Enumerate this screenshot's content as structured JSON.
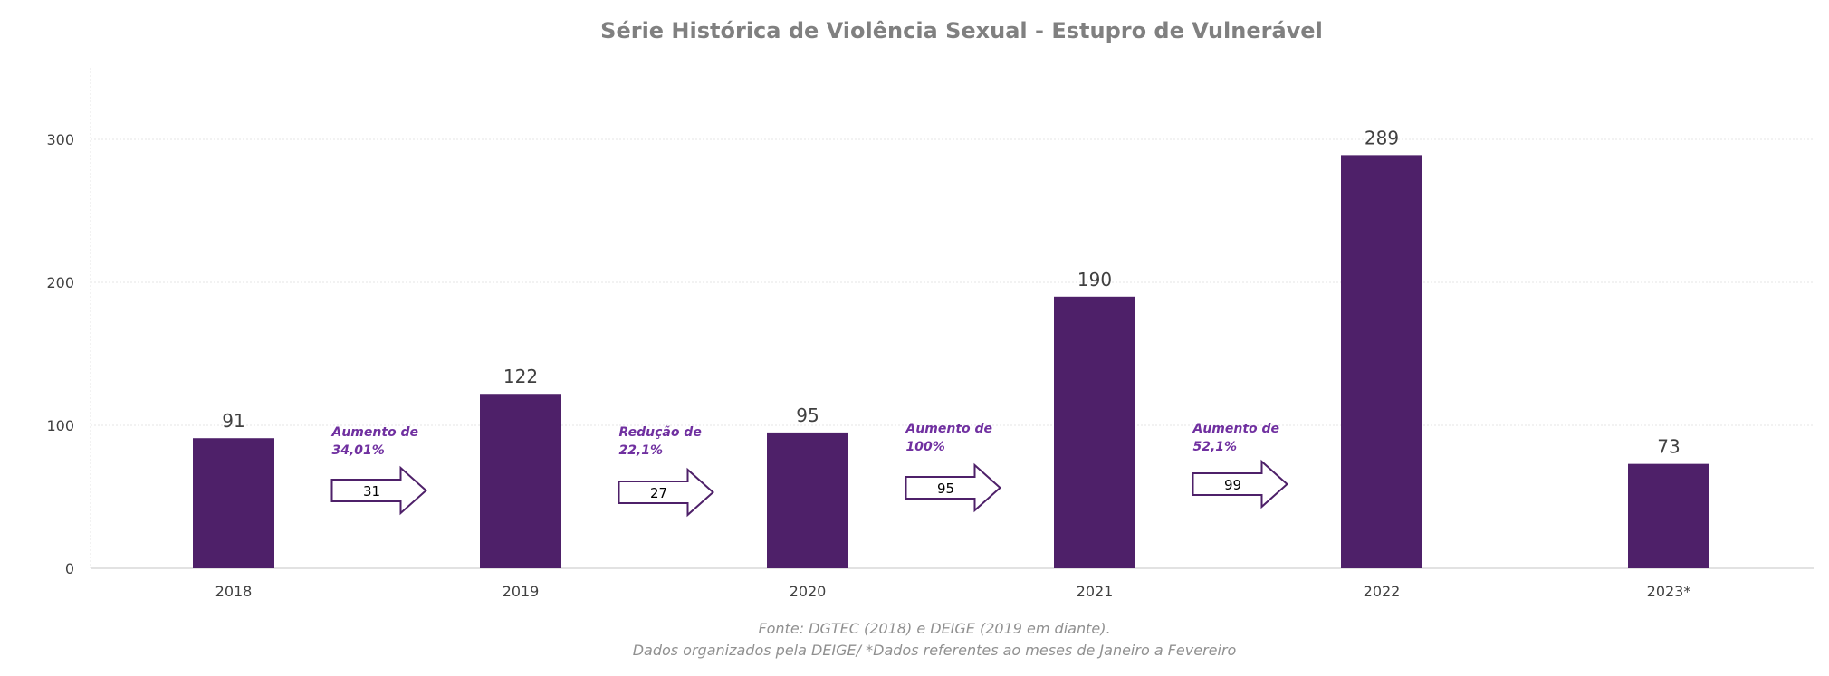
{
  "chart_data": {
    "type": "bar",
    "title": "Série Histórica de Violência Sexual - Estupro de Vulnerável",
    "categories": [
      "2018",
      "2019",
      "2020",
      "2021",
      "2022",
      "2023*"
    ],
    "values": [
      91,
      122,
      95,
      190,
      289,
      73
    ],
    "ylim": [
      0,
      350
    ],
    "yticks": [
      0,
      100,
      200,
      300
    ],
    "xlabel": "",
    "ylabel": "",
    "grid": true,
    "annotations": [
      {
        "text_lines": [
          "Aumento de",
          "34,01%"
        ],
        "arrow_value": "31",
        "between": [
          0,
          1
        ]
      },
      {
        "text_lines": [
          "Redução de",
          "22,1%"
        ],
        "arrow_value": "27",
        "between": [
          1,
          2
        ]
      },
      {
        "text_lines": [
          "Aumento de",
          "100%"
        ],
        "arrow_value": "95",
        "between": [
          2,
          3
        ]
      },
      {
        "text_lines": [
          "Aumento de",
          "52,1%"
        ],
        "arrow_value": "99",
        "between": [
          3,
          4
        ]
      }
    ],
    "source_lines": [
      "Fonte: DGTEC (2018) e DEIGE (2019 em diante).",
      "Dados organizados pela DEIGE/ *Dados referentes ao meses de Janeiro a Fevereiro"
    ]
  },
  "colors": {
    "bar": "#4e2069",
    "annotation_text": "#7030a0",
    "arrow_stroke": "#4e2069",
    "grid": "#e6e6e6"
  }
}
